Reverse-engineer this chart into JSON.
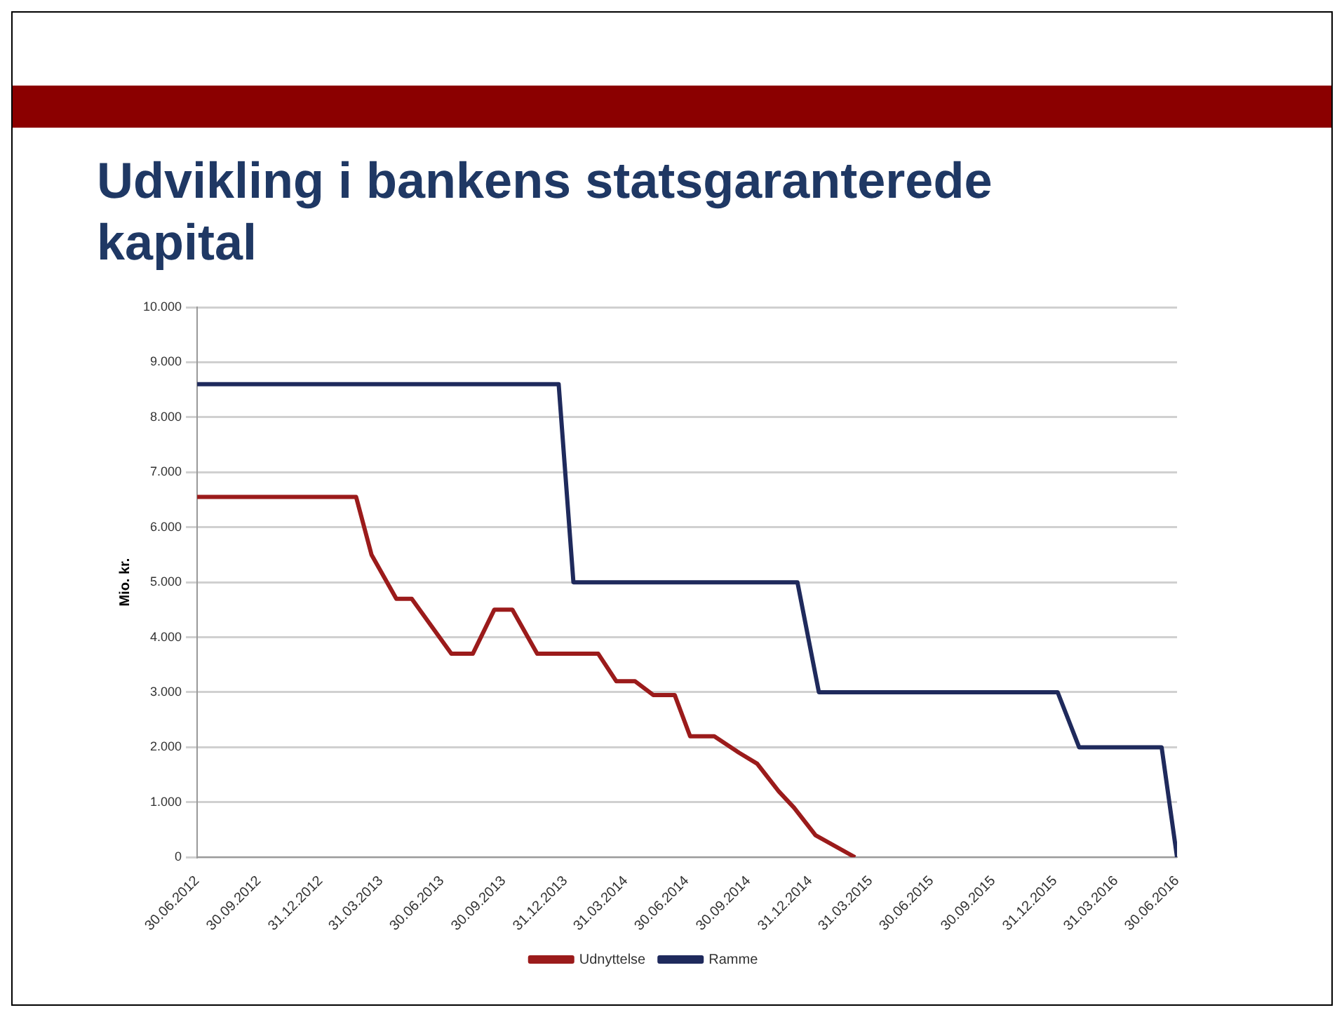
{
  "chart_data": {
    "type": "line",
    "title": "Udvikling i bankens statsgaranterede kapital",
    "ylabel": "Mio. kr.",
    "xlim": [
      "2012-06-30",
      "2016-06-30"
    ],
    "xticks": [
      {
        "value": "2012-06-30",
        "label": "30.06.2012"
      },
      {
        "value": "2012-09-30",
        "label": "30.09.2012"
      },
      {
        "value": "2012-12-31",
        "label": "31.12.2012"
      },
      {
        "value": "2013-03-31",
        "label": "31.03.2013"
      },
      {
        "value": "2013-06-30",
        "label": "30.06.2013"
      },
      {
        "value": "2013-09-30",
        "label": "30.09.2013"
      },
      {
        "value": "2013-12-31",
        "label": "31.12.2013"
      },
      {
        "value": "2014-03-31",
        "label": "31.03.2014"
      },
      {
        "value": "2014-06-30",
        "label": "30.06.2014"
      },
      {
        "value": "2014-09-30",
        "label": "30.09.2014"
      },
      {
        "value": "2014-12-31",
        "label": "31.12.2014"
      },
      {
        "value": "2015-03-31",
        "label": "31.03.2015"
      },
      {
        "value": "2015-06-30",
        "label": "30.06.2015"
      },
      {
        "value": "2015-09-30",
        "label": "30.09.2015"
      },
      {
        "value": "2015-12-31",
        "label": "31.12.2015"
      },
      {
        "value": "2016-03-31",
        "label": "31.03.2016"
      },
      {
        "value": "2016-06-30",
        "label": "30.06.2016"
      }
    ],
    "ylim": [
      0,
      10000
    ],
    "yticks": [
      {
        "value": 0,
        "label": "0"
      },
      {
        "value": 1000,
        "label": "1.000"
      },
      {
        "value": 2000,
        "label": "2.000"
      },
      {
        "value": 3000,
        "label": "3.000"
      },
      {
        "value": 4000,
        "label": "4.000"
      },
      {
        "value": 5000,
        "label": "5.000"
      },
      {
        "value": 6000,
        "label": "6.000"
      },
      {
        "value": 7000,
        "label": "7.000"
      },
      {
        "value": 8000,
        "label": "8.000"
      },
      {
        "value": 9000,
        "label": "9.000"
      },
      {
        "value": 10000,
        "label": "10.000"
      }
    ],
    "grid": "y",
    "legend": "bottom",
    "marker": "none",
    "line_style": "solid",
    "series": [
      {
        "name": "Udnyttelse",
        "color": "#9b1b1b",
        "x": [
          "2012-06-30",
          "2013-02-22",
          "2013-03-17",
          "2013-04-23",
          "2013-05-16",
          "2013-07-14",
          "2013-08-15",
          "2013-09-16",
          "2013-10-13",
          "2013-11-19",
          "2014-02-18",
          "2014-03-17",
          "2014-04-14",
          "2014-05-11",
          "2014-06-12",
          "2014-07-05",
          "2014-08-10",
          "2014-09-16",
          "2014-10-13",
          "2014-11-14",
          "2014-12-07",
          "2015-01-08",
          "2015-03-08"
        ],
        "values": [
          6550,
          6550,
          5500,
          4700,
          4700,
          3700,
          3700,
          4500,
          4500,
          3700,
          3700,
          3200,
          3200,
          2950,
          2950,
          2200,
          2200,
          1900,
          1700,
          1200,
          900,
          400,
          0
        ]
      },
      {
        "name": "Ramme",
        "color": "#1f2a5c",
        "x": [
          "2012-06-30",
          "2013-12-21",
          "2014-01-12",
          "2014-12-12",
          "2015-01-13",
          "2016-01-04",
          "2016-02-05",
          "2016-06-07",
          "2016-06-30"
        ],
        "values": [
          8600,
          8600,
          5000,
          5000,
          3000,
          3000,
          2000,
          2000,
          0
        ]
      }
    ]
  }
}
